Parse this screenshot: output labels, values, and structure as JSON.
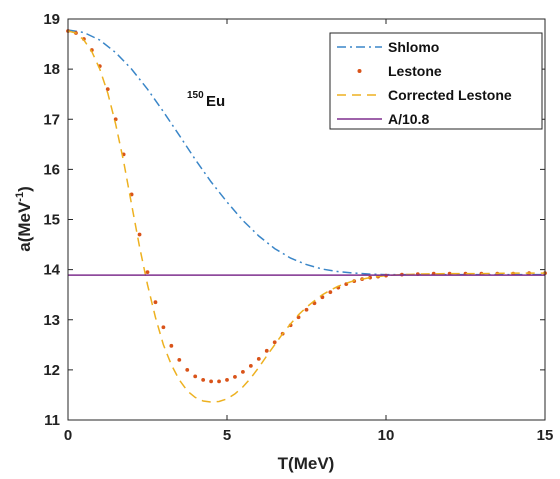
{
  "chart_data": {
    "type": "line",
    "title": "",
    "xlabel": "T(MeV)",
    "ylabel": "a(MeV",
    "ylabel_sup": "-1",
    "ylabel_close": ")",
    "xlim": [
      0,
      15
    ],
    "ylim": [
      11,
      19
    ],
    "xticks": [
      0,
      5,
      10,
      15
    ],
    "yticks": [
      11,
      12,
      13,
      14,
      15,
      16,
      17,
      18,
      19
    ],
    "grid": false,
    "legend_position": "top-right",
    "annotation": {
      "sup": "150",
      "text": "Eu"
    },
    "series": [
      {
        "name": "Shlomo",
        "style": "dashdot",
        "color": "#3a86c8",
        "x": [
          0,
          0.5,
          1,
          1.5,
          2,
          2.5,
          3,
          3.5,
          4,
          4.5,
          5,
          5.5,
          6,
          6.5,
          7,
          7.5,
          8,
          8.5,
          9,
          9.5,
          10,
          11,
          12,
          13,
          14,
          15
        ],
        "y": [
          18.78,
          18.73,
          18.58,
          18.33,
          18.0,
          17.6,
          17.15,
          16.68,
          16.2,
          15.75,
          15.35,
          14.98,
          14.67,
          14.42,
          14.23,
          14.1,
          14.01,
          13.96,
          13.93,
          13.91,
          13.9,
          13.9,
          13.9,
          13.9,
          13.9,
          13.9
        ]
      },
      {
        "name": "Lestone",
        "style": "dots",
        "color": "#d95319",
        "x": [
          0,
          0.25,
          0.5,
          0.75,
          1,
          1.25,
          1.5,
          1.75,
          2,
          2.25,
          2.5,
          2.75,
          3,
          3.25,
          3.5,
          3.75,
          4,
          4.25,
          4.5,
          4.75,
          5,
          5.25,
          5.5,
          5.75,
          6,
          6.25,
          6.5,
          6.75,
          7,
          7.25,
          7.5,
          7.75,
          8,
          8.25,
          8.5,
          8.75,
          9,
          9.25,
          9.5,
          9.75,
          10,
          10.5,
          11,
          11.5,
          12,
          12.5,
          13,
          13.5,
          14,
          14.5,
          15
        ],
        "y": [
          18.76,
          18.72,
          18.6,
          18.38,
          18.06,
          17.6,
          17.0,
          16.3,
          15.5,
          14.7,
          13.95,
          13.35,
          12.85,
          12.48,
          12.2,
          12.0,
          11.87,
          11.8,
          11.77,
          11.77,
          11.8,
          11.86,
          11.96,
          12.08,
          12.22,
          12.38,
          12.55,
          12.72,
          12.89,
          13.05,
          13.2,
          13.33,
          13.45,
          13.55,
          13.64,
          13.71,
          13.77,
          13.81,
          13.84,
          13.86,
          13.88,
          13.9,
          13.91,
          13.92,
          13.92,
          13.92,
          13.92,
          13.92,
          13.92,
          13.93,
          13.93
        ]
      },
      {
        "name": "Corrected Lestone",
        "style": "dashed",
        "color": "#edb120",
        "x": [
          0,
          0.25,
          0.5,
          0.75,
          1,
          1.25,
          1.5,
          1.75,
          2,
          2.25,
          2.5,
          2.75,
          3,
          3.25,
          3.5,
          3.75,
          4,
          4.25,
          4.5,
          4.75,
          5,
          5.25,
          5.5,
          5.75,
          6,
          6.25,
          6.5,
          6.75,
          7,
          7.25,
          7.5,
          7.75,
          8,
          8.25,
          8.5,
          8.75,
          9,
          9.5,
          10,
          10.5,
          11,
          12,
          13,
          14,
          15
        ],
        "y": [
          18.76,
          18.72,
          18.58,
          18.35,
          18.0,
          17.52,
          16.9,
          16.15,
          15.3,
          14.45,
          13.7,
          13.05,
          12.5,
          12.1,
          11.8,
          11.58,
          11.45,
          11.38,
          11.36,
          11.37,
          11.42,
          11.52,
          11.66,
          11.84,
          12.05,
          12.28,
          12.5,
          12.72,
          12.92,
          13.1,
          13.25,
          13.38,
          13.5,
          13.59,
          13.67,
          13.73,
          13.78,
          13.84,
          13.88,
          13.9,
          13.91,
          13.92,
          13.92,
          13.93,
          13.93
        ]
      },
      {
        "name": "A/10.8",
        "style": "solid",
        "color": "#7e2f8e",
        "x": [
          0,
          15
        ],
        "y": [
          13.89,
          13.89
        ]
      }
    ]
  }
}
